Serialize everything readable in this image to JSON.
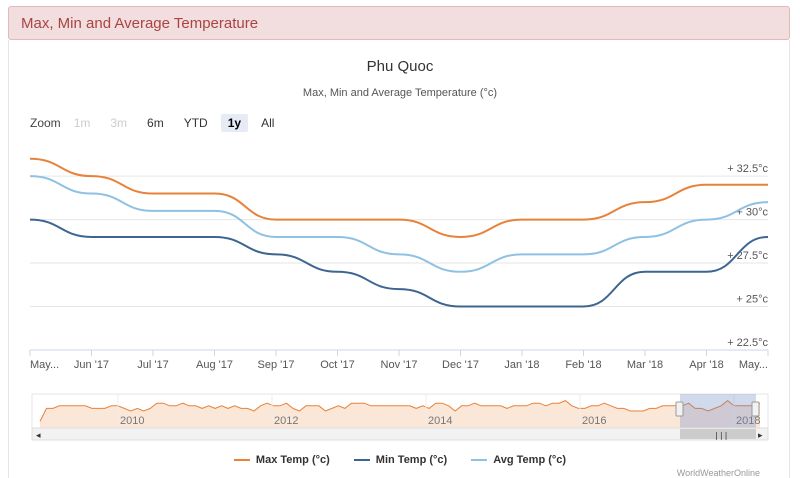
{
  "header": {
    "title": "Max, Min and Average Temperature"
  },
  "chart_data": {
    "type": "line",
    "title": "Phu Quoc",
    "subtitle": "Max, Min and Average Temperature (°c)",
    "x": [
      "May...",
      "Jun '17",
      "Jul '17",
      "Aug '17",
      "Sep '17",
      "Oct '17",
      "Nov '17",
      "Dec '17",
      "Jan '18",
      "Feb '18",
      "Mar '18",
      "Apr '18",
      "May..."
    ],
    "y_ticks": [
      "22.5°c",
      "25°c",
      "27.5°c",
      "30°c",
      "32.5°c"
    ],
    "ylim": [
      22.5,
      34
    ],
    "series": [
      {
        "name": "Max Temp (°c)",
        "color": "#e8823a",
        "values": [
          33.5,
          32.5,
          31.5,
          31.5,
          30,
          30,
          30,
          29,
          30,
          30,
          31,
          32,
          32
        ]
      },
      {
        "name": "Min Temp (°c)",
        "color": "#3d6591",
        "values": [
          30,
          29,
          29,
          29,
          28,
          27,
          26,
          25,
          25,
          25,
          27,
          27,
          29
        ]
      },
      {
        "name": "Avg Temp (°c)",
        "color": "#8ec1e3",
        "values": [
          32.5,
          31.5,
          30.5,
          30.5,
          29,
          29,
          28,
          27,
          28,
          28,
          29,
          30,
          31
        ]
      }
    ],
    "navigator": {
      "years": [
        "2010",
        "2012",
        "2014",
        "2016",
        "2018"
      ],
      "values": [
        25,
        30,
        30,
        31,
        31,
        31,
        31,
        31,
        30,
        30,
        30,
        31,
        31,
        30,
        29,
        30,
        29,
        30,
        32,
        32,
        31,
        31,
        32,
        31,
        31,
        30,
        31,
        30,
        31,
        30,
        31,
        30,
        30,
        29,
        31,
        32,
        31,
        31,
        32,
        30,
        29,
        31,
        31,
        31,
        29,
        30,
        31,
        30,
        32,
        32,
        32,
        31,
        31,
        31,
        31,
        31,
        31,
        31,
        30,
        31,
        30,
        32,
        32,
        31,
        29,
        31,
        31,
        32,
        31,
        31,
        31,
        31,
        30,
        31,
        31,
        31,
        32,
        32,
        31,
        32,
        32,
        33,
        31,
        30,
        30,
        31,
        31,
        32,
        31,
        30,
        30,
        29,
        29,
        29,
        30,
        30,
        31,
        31,
        31,
        31,
        32,
        30,
        30,
        29,
        30,
        31,
        33,
        31,
        31,
        31,
        31,
        32
      ]
    },
    "legend_position": "bottom"
  },
  "zoom": {
    "label": "Zoom",
    "buttons": [
      {
        "label": "1m",
        "state": "disabled"
      },
      {
        "label": "3m",
        "state": "disabled"
      },
      {
        "label": "6m",
        "state": "normal"
      },
      {
        "label": "YTD",
        "state": "normal"
      },
      {
        "label": "1y",
        "state": "active"
      },
      {
        "label": "All",
        "state": "normal"
      }
    ]
  },
  "credits": "WorldWeatherOnline"
}
